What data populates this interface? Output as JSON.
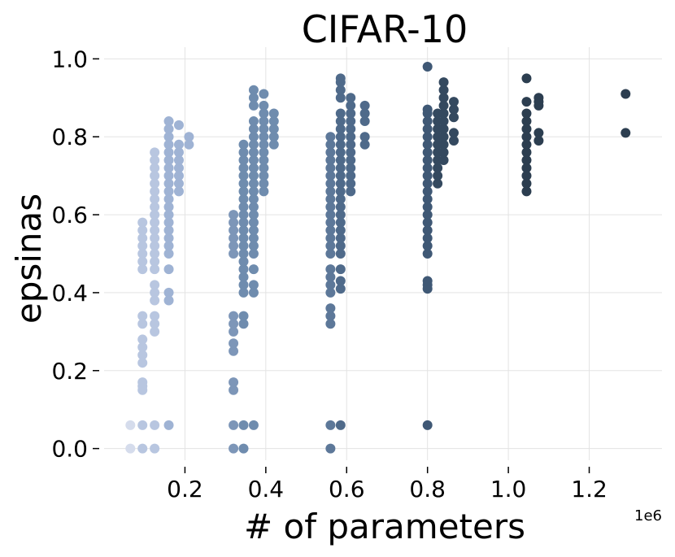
{
  "chart_data": {
    "type": "scatter",
    "title": "CIFAR-10",
    "xlabel": "# of parameters",
    "ylabel": "epsinas",
    "x_offset_label": "1e6",
    "xlim": [
      0.0,
      1.38
    ],
    "ylim": [
      -0.03,
      1.03
    ],
    "xticks": [
      0.2,
      0.4,
      0.6,
      0.8,
      1.0,
      1.2
    ],
    "xtick_labels": [
      "0.2",
      "0.4",
      "0.6",
      "0.8",
      "1.0",
      "1.2"
    ],
    "yticks": [
      0.0,
      0.2,
      0.4,
      0.6,
      0.8,
      1.0
    ],
    "ytick_labels": [
      "0.0",
      "0.2",
      "0.4",
      "0.6",
      "0.8",
      "1.0"
    ],
    "grid": true,
    "marker_size": 6,
    "colors": {
      "c1": "#d5dcec",
      "c2": "#b8c6e0",
      "c3": "#9fb3d4",
      "c4": "#7d96b8",
      "c5": "#6f8cae",
      "c6": "#5d7899",
      "c7": "#4f6a8a",
      "c8": "#3f5875",
      "c9": "#34495f",
      "c10": "#2c3e50"
    },
    "columns": [
      {
        "x": 0.065,
        "color": "c1",
        "y": [
          0.0,
          0.06
        ]
      },
      {
        "x": 0.095,
        "color": "c2",
        "y": [
          0.0,
          0.06,
          0.15,
          0.16,
          0.17,
          0.22,
          0.24,
          0.26,
          0.28,
          0.32,
          0.34,
          0.46,
          0.48,
          0.5,
          0.52,
          0.54,
          0.56,
          0.58
        ]
      },
      {
        "x": 0.125,
        "color": "c2",
        "y": [
          0.0,
          0.06,
          0.3,
          0.32,
          0.34,
          0.38,
          0.4,
          0.42,
          0.46,
          0.48,
          0.5,
          0.52,
          0.54,
          0.56,
          0.58,
          0.6,
          0.62,
          0.64,
          0.66,
          0.68,
          0.7,
          0.72,
          0.74,
          0.76
        ]
      },
      {
        "x": 0.16,
        "color": "c3",
        "y": [
          0.06,
          0.38,
          0.4,
          0.46,
          0.5,
          0.52,
          0.54,
          0.56,
          0.58,
          0.6,
          0.62,
          0.64,
          0.66,
          0.68,
          0.7,
          0.72,
          0.74,
          0.76,
          0.78,
          0.8,
          0.82,
          0.84
        ]
      },
      {
        "x": 0.185,
        "color": "c3",
        "y": [
          0.66,
          0.68,
          0.7,
          0.72,
          0.74,
          0.76,
          0.78,
          0.83
        ]
      },
      {
        "x": 0.21,
        "color": "c3",
        "y": [
          0.78,
          0.8
        ]
      },
      {
        "x": 0.32,
        "color": "c4",
        "y": [
          0.0,
          0.06,
          0.15,
          0.17,
          0.25,
          0.27,
          0.3,
          0.32,
          0.34,
          0.5,
          0.52,
          0.54,
          0.56,
          0.58,
          0.6
        ]
      },
      {
        "x": 0.345,
        "color": "c5",
        "y": [
          0.0,
          0.06,
          0.32,
          0.34,
          0.4,
          0.42,
          0.44,
          0.46,
          0.48,
          0.5,
          0.52,
          0.54,
          0.56,
          0.58,
          0.6,
          0.62,
          0.64,
          0.66,
          0.68,
          0.7,
          0.72,
          0.74,
          0.76,
          0.78
        ]
      },
      {
        "x": 0.37,
        "color": "c5",
        "y": [
          0.06,
          0.4,
          0.42,
          0.46,
          0.5,
          0.52,
          0.54,
          0.56,
          0.58,
          0.6,
          0.62,
          0.64,
          0.66,
          0.68,
          0.7,
          0.72,
          0.74,
          0.76,
          0.78,
          0.8,
          0.82,
          0.84,
          0.88,
          0.9,
          0.92
        ]
      },
      {
        "x": 0.395,
        "color": "c5",
        "y": [
          0.66,
          0.68,
          0.7,
          0.72,
          0.74,
          0.76,
          0.78,
          0.8,
          0.82,
          0.84,
          0.86,
          0.88,
          0.91
        ]
      },
      {
        "x": 0.42,
        "color": "c5",
        "y": [
          0.78,
          0.8,
          0.82,
          0.84,
          0.86
        ]
      },
      {
        "x": 0.56,
        "color": "c6",
        "y": [
          0.0,
          0.06,
          0.32,
          0.34,
          0.36,
          0.4,
          0.42,
          0.44,
          0.46,
          0.5,
          0.52,
          0.54,
          0.56,
          0.58,
          0.6,
          0.62,
          0.64,
          0.66,
          0.68,
          0.7,
          0.72,
          0.74,
          0.76,
          0.78,
          0.8
        ]
      },
      {
        "x": 0.585,
        "color": "c7",
        "y": [
          0.06,
          0.41,
          0.43,
          0.46,
          0.5,
          0.52,
          0.54,
          0.56,
          0.58,
          0.6,
          0.62,
          0.64,
          0.66,
          0.68,
          0.7,
          0.72,
          0.74,
          0.76,
          0.78,
          0.8,
          0.82,
          0.84,
          0.86,
          0.9,
          0.92,
          0.94,
          0.95
        ]
      },
      {
        "x": 0.61,
        "color": "c7",
        "y": [
          0.66,
          0.68,
          0.7,
          0.72,
          0.74,
          0.76,
          0.78,
          0.8,
          0.82,
          0.84,
          0.86,
          0.88,
          0.9
        ]
      },
      {
        "x": 0.645,
        "color": "c7",
        "y": [
          0.78,
          0.8,
          0.84,
          0.86,
          0.88
        ]
      },
      {
        "x": 0.8,
        "color": "c8",
        "y": [
          0.06,
          0.41,
          0.42,
          0.43,
          0.5,
          0.52,
          0.54,
          0.56,
          0.58,
          0.6,
          0.62,
          0.64,
          0.66,
          0.68,
          0.7,
          0.72,
          0.74,
          0.76,
          0.78,
          0.8,
          0.82,
          0.84,
          0.86,
          0.87,
          0.98
        ]
      },
      {
        "x": 0.825,
        "color": "c9",
        "y": [
          0.68,
          0.7,
          0.72,
          0.74,
          0.76,
          0.78,
          0.8,
          0.82,
          0.84,
          0.86
        ]
      },
      {
        "x": 0.84,
        "color": "c9",
        "y": [
          0.74,
          0.76,
          0.78,
          0.8,
          0.82,
          0.84,
          0.86,
          0.88,
          0.9,
          0.92,
          0.94
        ]
      },
      {
        "x": 0.865,
        "color": "c9",
        "y": [
          0.79,
          0.81,
          0.85,
          0.87,
          0.89
        ]
      },
      {
        "x": 1.045,
        "color": "c10",
        "y": [
          0.66,
          0.68,
          0.7,
          0.72,
          0.74,
          0.76,
          0.78,
          0.8,
          0.82,
          0.84,
          0.86,
          0.89,
          0.95
        ]
      },
      {
        "x": 1.075,
        "color": "c10",
        "y": [
          0.79,
          0.81,
          0.88,
          0.89,
          0.9
        ]
      },
      {
        "x": 1.29,
        "color": "c10",
        "y": [
          0.81,
          0.91
        ]
      }
    ]
  }
}
